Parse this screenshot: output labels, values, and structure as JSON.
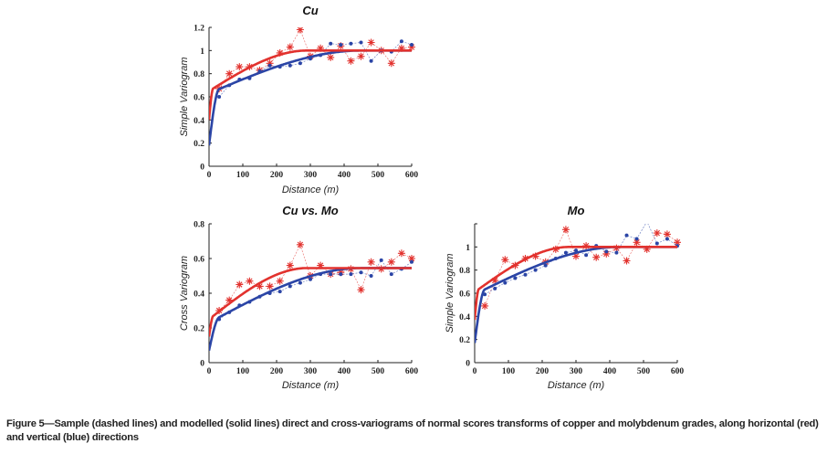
{
  "figure": {
    "caption": "Figure 5—Sample (dashed lines) and modelled (solid lines) direct and cross-variograms of normal scores transforms of copper and molybdenum grades, along horizontal (red) and vertical (blue) directions",
    "colors": {
      "horizontal": "#e2322e",
      "vertical": "#2b45a6"
    }
  },
  "chart_data": [
    {
      "id": "cu",
      "type": "line",
      "title": "Cu",
      "xlabel": "Distance (m)",
      "ylabel": "Simple Variogram",
      "xlim": [
        0,
        600
      ],
      "ylim": [
        0,
        1.2
      ],
      "xticks": [
        0,
        100,
        200,
        300,
        400,
        500,
        600
      ],
      "xtick_labels": [
        "0",
        "100",
        "200",
        "300",
        "400",
        "500",
        "600"
      ],
      "yticks": [
        0,
        0.2,
        0.4,
        0.6,
        0.8,
        1,
        1.2
      ],
      "ytick_labels": [
        "0",
        "0.2",
        "0.4",
        "0.6",
        "0.8",
        "1",
        "1.2"
      ],
      "grid": false,
      "x": [
        30,
        60,
        90,
        120,
        150,
        180,
        210,
        240,
        270,
        300,
        330,
        360,
        390,
        420,
        450,
        480,
        510,
        540,
        570,
        600
      ],
      "series": [
        {
          "name": "Horizontal sample",
          "style": "dashed",
          "marker": "star",
          "color": "#e2322e",
          "values": [
            0.67,
            0.8,
            0.86,
            0.86,
            0.83,
            0.89,
            0.98,
            1.03,
            1.18,
            0.95,
            1.02,
            0.94,
            1.04,
            0.91,
            0.95,
            1.07,
            1.0,
            0.89,
            1.02,
            1.03
          ]
        },
        {
          "name": "Vertical sample",
          "style": "dashed",
          "marker": "dot",
          "color": "#2b45a6",
          "values": [
            0.6,
            0.7,
            0.75,
            0.76,
            0.82,
            0.87,
            0.86,
            0.87,
            0.89,
            0.93,
            0.96,
            1.06,
            1.05,
            1.06,
            1.07,
            0.91,
            1.0,
            0.99,
            1.08,
            1.05
          ]
        },
        {
          "name": "Horizontal model",
          "style": "solid",
          "color": "#e2322e",
          "model": {
            "nugget": 0.4,
            "short_sill": 0.25,
            "short_range": 12,
            "long_sill": 0.35,
            "long_range": 290
          }
        },
        {
          "name": "Vertical model",
          "style": "solid",
          "color": "#2b45a6",
          "model": {
            "nugget": 0.18,
            "short_sill": 0.45,
            "short_range": 30,
            "long_sill": 0.37,
            "long_range": 450
          }
        }
      ]
    },
    {
      "id": "cumo",
      "type": "line",
      "title": "Cu vs. Mo",
      "xlabel": "Distance (m)",
      "ylabel": "Cross Variogram",
      "xlim": [
        0,
        600
      ],
      "ylim": [
        0,
        0.8
      ],
      "xticks": [
        0,
        100,
        200,
        300,
        400,
        500,
        600
      ],
      "xtick_labels": [
        "0",
        "100",
        "200",
        "300",
        "400",
        "500",
        "600"
      ],
      "yticks": [
        0,
        0.2,
        0.4,
        0.6,
        0.8
      ],
      "ytick_labels": [
        "0",
        "0.2",
        "0.4",
        "0.6",
        "0.8"
      ],
      "grid": false,
      "x": [
        30,
        60,
        90,
        120,
        150,
        180,
        210,
        240,
        270,
        300,
        330,
        360,
        390,
        420,
        450,
        480,
        510,
        540,
        570,
        600
      ],
      "series": [
        {
          "name": "Horizontal sample",
          "style": "dashed",
          "marker": "star",
          "color": "#e2322e",
          "values": [
            0.3,
            0.36,
            0.45,
            0.47,
            0.44,
            0.44,
            0.47,
            0.56,
            0.68,
            0.5,
            0.56,
            0.51,
            0.52,
            0.54,
            0.42,
            0.58,
            0.54,
            0.58,
            0.63,
            0.6
          ]
        },
        {
          "name": "Vertical sample",
          "style": "dashed",
          "marker": "dot",
          "color": "#2b45a6",
          "values": [
            0.25,
            0.29,
            0.33,
            0.35,
            0.38,
            0.4,
            0.41,
            0.44,
            0.46,
            0.48,
            0.51,
            0.51,
            0.51,
            0.51,
            0.52,
            0.5,
            0.59,
            0.51,
            0.54,
            0.58
          ]
        },
        {
          "name": "Horizontal model",
          "style": "solid",
          "color": "#e2322e",
          "model": {
            "nugget": 0.15,
            "short_sill": 0.1,
            "short_range": 12,
            "long_sill": 0.295,
            "long_range": 290
          }
        },
        {
          "name": "Vertical model",
          "style": "solid",
          "color": "#2b45a6",
          "model": {
            "nugget": 0.07,
            "short_sill": 0.16,
            "short_range": 30,
            "long_sill": 0.315,
            "long_range": 450
          }
        }
      ]
    },
    {
      "id": "mo",
      "type": "line",
      "title": "Mo",
      "xlabel": "Distance (m)",
      "ylabel": "Simple Variogram",
      "xlim": [
        0,
        600
      ],
      "ylim": [
        0,
        1.2
      ],
      "xticks": [
        0,
        100,
        200,
        300,
        400,
        500,
        600
      ],
      "xtick_labels": [
        "0",
        "100",
        "200",
        "300",
        "400",
        "500",
        "600"
      ],
      "yticks": [
        0,
        0.2,
        0.4,
        0.6,
        0.8,
        1
      ],
      "ytick_labels": [
        "0",
        "0.2",
        "0.4",
        "0.6",
        "0.8",
        "1"
      ],
      "grid": false,
      "x": [
        30,
        60,
        90,
        120,
        150,
        180,
        210,
        240,
        270,
        300,
        330,
        360,
        390,
        420,
        450,
        480,
        510,
        540,
        570,
        600
      ],
      "series": [
        {
          "name": "Horizontal sample",
          "style": "dashed",
          "marker": "star",
          "color": "#e2322e",
          "values": [
            0.49,
            0.71,
            0.89,
            0.84,
            0.9,
            0.92,
            0.87,
            0.98,
            1.15,
            0.92,
            1.01,
            0.91,
            0.94,
            0.99,
            0.88,
            1.04,
            0.98,
            1.12,
            1.11,
            1.04
          ]
        },
        {
          "name": "Vertical sample",
          "style": "dashed",
          "marker": "dot",
          "color": "#2b45a6",
          "values": [
            0.59,
            0.64,
            0.69,
            0.73,
            0.76,
            0.8,
            0.84,
            0.9,
            0.95,
            0.97,
            0.93,
            1.01,
            0.96,
            0.95,
            1.1,
            1.07,
            1.22,
            1.03,
            1.07,
            1.01
          ]
        },
        {
          "name": "Horizontal model",
          "style": "solid",
          "color": "#e2322e",
          "model": {
            "nugget": 0.37,
            "short_sill": 0.24,
            "short_range": 12,
            "long_sill": 0.39,
            "long_range": 280
          }
        },
        {
          "name": "Vertical model",
          "style": "solid",
          "color": "#2b45a6",
          "model": {
            "nugget": 0.17,
            "short_sill": 0.42,
            "short_range": 30,
            "long_sill": 0.41,
            "long_range": 430
          }
        }
      ]
    }
  ]
}
